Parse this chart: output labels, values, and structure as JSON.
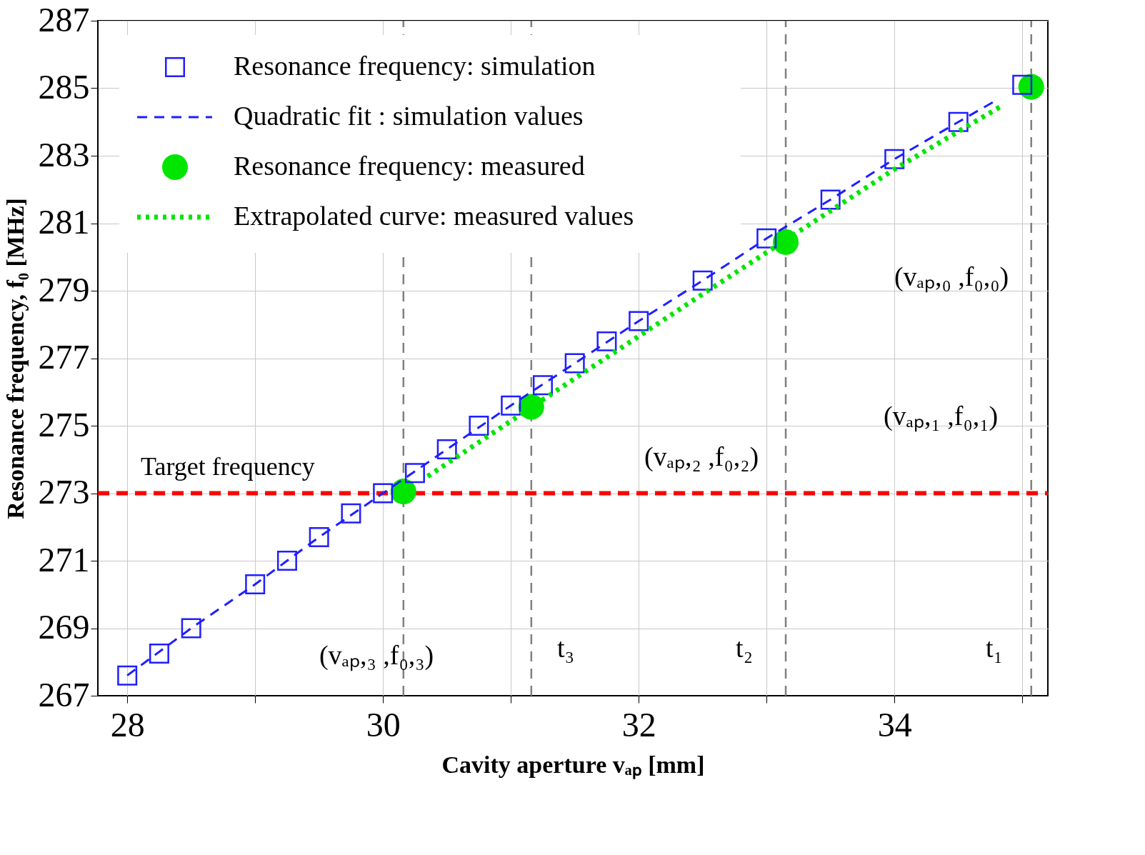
{
  "chart_data": {
    "type": "scatter",
    "xlabel": "Cavity aperture vₐₚ [mm]",
    "ylabel": "Resonance frequency, f₀ [MHz]",
    "xlim": [
      27.77,
      35.2
    ],
    "ylim": [
      267,
      287
    ],
    "xticks": [
      28,
      {
        "value": 29,
        "label": null
      },
      30,
      {
        "value": 31,
        "label": null
      },
      32,
      {
        "value": 33,
        "label": null
      },
      34,
      {
        "value": 35,
        "label": null
      }
    ],
    "yticks": [
      267,
      269,
      271,
      273,
      275,
      277,
      279,
      281,
      283,
      285,
      287
    ],
    "grid": true,
    "legend": "top left",
    "series": [
      {
        "name": "Resonance frequency: simulation",
        "marker": "square",
        "color": "#1f1fff",
        "x": [
          28,
          28.25,
          28.5,
          29,
          29.25,
          29.5,
          29.75,
          30,
          30.25,
          30.5,
          30.75,
          31,
          31.25,
          31.5,
          31.75,
          32,
          32.5,
          33,
          33.5,
          34,
          34.5,
          35
        ],
        "values": [
          267.6,
          268.25,
          269.0,
          270.3,
          271.0,
          271.7,
          272.4,
          273.0,
          273.6,
          274.3,
          275.0,
          275.6,
          276.2,
          276.85,
          277.5,
          278.1,
          279.3,
          280.55,
          281.7,
          282.9,
          284.0,
          285.1
        ]
      },
      {
        "name": "Quadratic fit : simulation values",
        "type": "line",
        "line_style": "dashed",
        "color": "#1f1fff",
        "x": [
          28,
          28.5,
          29,
          29.5,
          30,
          30.5,
          31,
          31.5,
          32,
          32.5,
          33,
          33.5,
          34,
          34.5,
          34.8
        ],
        "values": [
          267.6,
          269.0,
          270.3,
          271.7,
          273.0,
          274.3,
          275.6,
          276.85,
          278.1,
          279.3,
          280.55,
          281.7,
          282.9,
          284.0,
          284.65
        ]
      },
      {
        "name": "Resonance frequency: measured",
        "marker": "circle",
        "color": "#00e600",
        "x": [
          30.16,
          31.16,
          33.15,
          35.07
        ],
        "values": [
          273.05,
          275.56,
          280.44,
          285.04
        ]
      },
      {
        "name": "Extrapolated curve: measured values",
        "type": "line",
        "line_style": "dotted",
        "color": "#00e600",
        "x": [
          30.35,
          31.5,
          32.5,
          34.0,
          34.85
        ],
        "values": [
          273.5,
          276.4,
          278.9,
          282.6,
          284.5
        ]
      }
    ],
    "ref_lines": [
      {
        "axis": "y",
        "value": 273,
        "label": "Target frequency",
        "color": "#ff0000",
        "line_style": "dashed"
      },
      {
        "axis": "x",
        "value": 30.16,
        "color": "#808080",
        "line_style": "dashed"
      },
      {
        "axis": "x",
        "value": 31.16,
        "color": "#808080",
        "line_style": "dashed"
      },
      {
        "axis": "x",
        "value": 33.15,
        "color": "#808080",
        "line_style": "dashed"
      },
      {
        "axis": "x",
        "value": 35.07,
        "color": "#808080",
        "line_style": "dashed"
      }
    ],
    "annotations": [
      "(vₐₚ,₀ ,f₀,₀)",
      "(vₐₚ,₁ ,f₀,₁)",
      "(vₐₚ,₂ ,f₀,₂)",
      "(vₐₚ,₃ ,f₀,₃)",
      "t₃",
      "t₂",
      "t₁"
    ]
  }
}
